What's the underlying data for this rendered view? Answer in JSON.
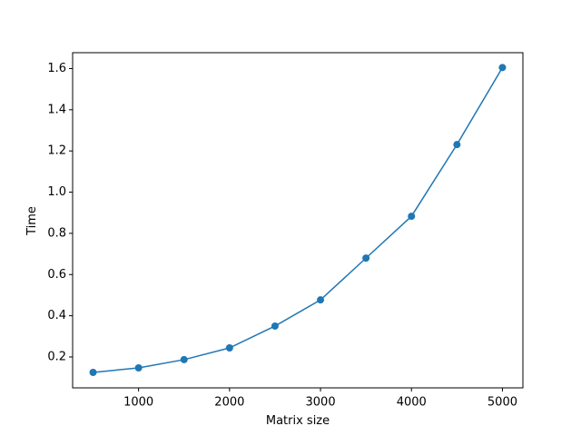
{
  "chart_data": {
    "type": "line",
    "x_label": "Matrix size",
    "y_label": "Time",
    "x": [
      500,
      1000,
      1500,
      2000,
      2500,
      3000,
      3500,
      4000,
      4500,
      5000
    ],
    "series": [
      {
        "color": "#1f77b4",
        "values": [
          0.125,
          0.147,
          0.187,
          0.244,
          0.35,
          0.477,
          0.68,
          0.883,
          1.231,
          1.605
        ]
      }
    ],
    "xlim": [
      275,
      5225
    ],
    "xticks": [
      1000,
      2000,
      3000,
      4000,
      5000
    ],
    "ylim": [
      0.05,
      1.677
    ],
    "yticks": [
      0.2,
      0.4,
      0.6,
      0.8,
      {
        "value": 1,
        "label": "1.0"
      },
      1.2,
      1.4,
      1.6
    ],
    "markers": true
  }
}
